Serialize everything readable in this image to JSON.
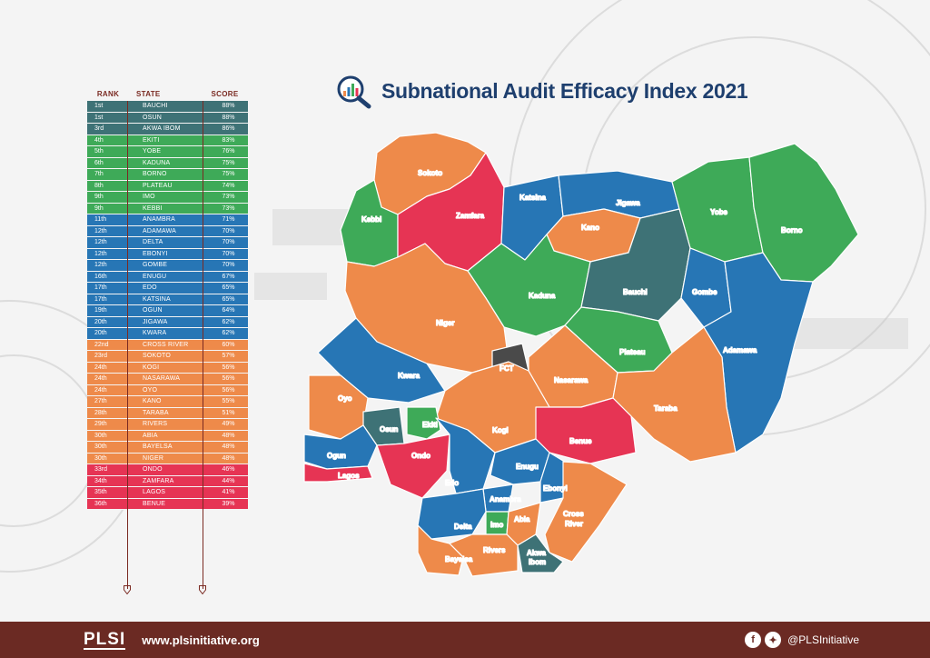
{
  "title": "Subnational Audit Efficacy Index 2021",
  "table": {
    "headers": {
      "rank": "RANK",
      "state": "STATE",
      "score": "SCORE"
    },
    "rows": [
      {
        "rank": "1st",
        "state": "BAUCHI",
        "score": "88%",
        "tier": "teal"
      },
      {
        "rank": "1st",
        "state": "OSUN",
        "score": "88%",
        "tier": "teal"
      },
      {
        "rank": "3rd",
        "state": "AKWA IBOM",
        "score": "86%",
        "tier": "teal"
      },
      {
        "rank": "4th",
        "state": "EKITI",
        "score": "83%",
        "tier": "green"
      },
      {
        "rank": "5th",
        "state": "YOBE",
        "score": "76%",
        "tier": "green"
      },
      {
        "rank": "6th",
        "state": "KADUNA",
        "score": "75%",
        "tier": "green"
      },
      {
        "rank": "7th",
        "state": "BORNO",
        "score": "75%",
        "tier": "green"
      },
      {
        "rank": "8th",
        "state": "PLATEAU",
        "score": "74%",
        "tier": "green"
      },
      {
        "rank": "9th",
        "state": "IMO",
        "score": "73%",
        "tier": "green"
      },
      {
        "rank": "9th",
        "state": "KEBBI",
        "score": "73%",
        "tier": "green"
      },
      {
        "rank": "11th",
        "state": "ANAMBRA",
        "score": "71%",
        "tier": "blue"
      },
      {
        "rank": "12th",
        "state": "ADAMAWA",
        "score": "70%",
        "tier": "blue"
      },
      {
        "rank": "12th",
        "state": "DELTA",
        "score": "70%",
        "tier": "blue"
      },
      {
        "rank": "12th",
        "state": "EBONYI",
        "score": "70%",
        "tier": "blue"
      },
      {
        "rank": "12th",
        "state": "GOMBE",
        "score": "70%",
        "tier": "blue"
      },
      {
        "rank": "16th",
        "state": "ENUGU",
        "score": "67%",
        "tier": "blue"
      },
      {
        "rank": "17th",
        "state": "EDO",
        "score": "65%",
        "tier": "blue"
      },
      {
        "rank": "17th",
        "state": "KATSINA",
        "score": "65%",
        "tier": "blue"
      },
      {
        "rank": "19th",
        "state": "OGUN",
        "score": "64%",
        "tier": "blue"
      },
      {
        "rank": "20th",
        "state": "JIGAWA",
        "score": "62%",
        "tier": "blue"
      },
      {
        "rank": "20th",
        "state": "KWARA",
        "score": "62%",
        "tier": "blue"
      },
      {
        "rank": "22nd",
        "state": "CROSS RIVER",
        "score": "60%",
        "tier": "orange"
      },
      {
        "rank": "23rd",
        "state": "SOKOTO",
        "score": "57%",
        "tier": "orange"
      },
      {
        "rank": "24th",
        "state": "KOGI",
        "score": "56%",
        "tier": "orange"
      },
      {
        "rank": "24th",
        "state": "NASARAWA",
        "score": "56%",
        "tier": "orange"
      },
      {
        "rank": "24th",
        "state": "OYO",
        "score": "56%",
        "tier": "orange"
      },
      {
        "rank": "27th",
        "state": "KANO",
        "score": "55%",
        "tier": "orange"
      },
      {
        "rank": "28th",
        "state": "TARABA",
        "score": "51%",
        "tier": "orange"
      },
      {
        "rank": "29th",
        "state": "RIVERS",
        "score": "49%",
        "tier": "orange"
      },
      {
        "rank": "30th",
        "state": "ABIA",
        "score": "48%",
        "tier": "orange"
      },
      {
        "rank": "30th",
        "state": "BAYELSA",
        "score": "48%",
        "tier": "orange"
      },
      {
        "rank": "30th",
        "state": "NIGER",
        "score": "48%",
        "tier": "orange"
      },
      {
        "rank": "33rd",
        "state": "ONDO",
        "score": "46%",
        "tier": "red"
      },
      {
        "rank": "34th",
        "state": "ZAMFARA",
        "score": "44%",
        "tier": "red"
      },
      {
        "rank": "35th",
        "state": "LAGOS",
        "score": "41%",
        "tier": "red"
      },
      {
        "rank": "36th",
        "state": "BENUE",
        "score": "39%",
        "tier": "red"
      }
    ]
  },
  "colors": {
    "teal": "#3e7276",
    "green": "#3eaa58",
    "blue": "#2776b5",
    "orange": "#ee8a4a",
    "red": "#e63454",
    "fct": "#4a4a4a",
    "header_text": "#7a2a22",
    "title_text": "#1e3f6e",
    "footer_bg": "#6b2a23"
  },
  "map_labels": {
    "sokoto": "Sokoto",
    "zamfara": "Zamfara",
    "kebbi": "Kebbi",
    "katsina": "Katsina",
    "jigawa": "Jigawa",
    "kano": "Kano",
    "yobe": "Yobe",
    "borno": "Borno",
    "kaduna": "Kaduna",
    "bauchi": "Bauchi",
    "gombe": "Gombe",
    "niger": "Niger",
    "plateau": "Plateau",
    "adamawa": "Adamawa",
    "fct": "FCT",
    "kwara": "Kwara",
    "nasarawa": "Nasarawa",
    "taraba": "Taraba",
    "oyo": "Oyo",
    "osun": "Osun",
    "ekiti": "Ekiti",
    "kogi": "Kogi",
    "benue": "Benue",
    "ogun": "Ogun",
    "ondo": "Ondo",
    "lagos": "Lagos",
    "edo": "Edo",
    "enugu": "Enugu",
    "ebonyi": "Ebonyi",
    "anambra": "Anambra",
    "delta": "Delta",
    "imo": "Imo",
    "abia": "Abia",
    "cross_river_1": "Cross",
    "cross_river_2": "River",
    "bayelsa": "Bayelsa",
    "rivers": "Rivers",
    "akwa_ibom_1": "Akwa",
    "akwa_ibom_2": "Ibom"
  },
  "footer": {
    "logo": "PLSI",
    "website": "www.plsinitiative.org",
    "handle": "@PLSInitiative",
    "icons": [
      "facebook-icon",
      "twitter-icon"
    ]
  }
}
